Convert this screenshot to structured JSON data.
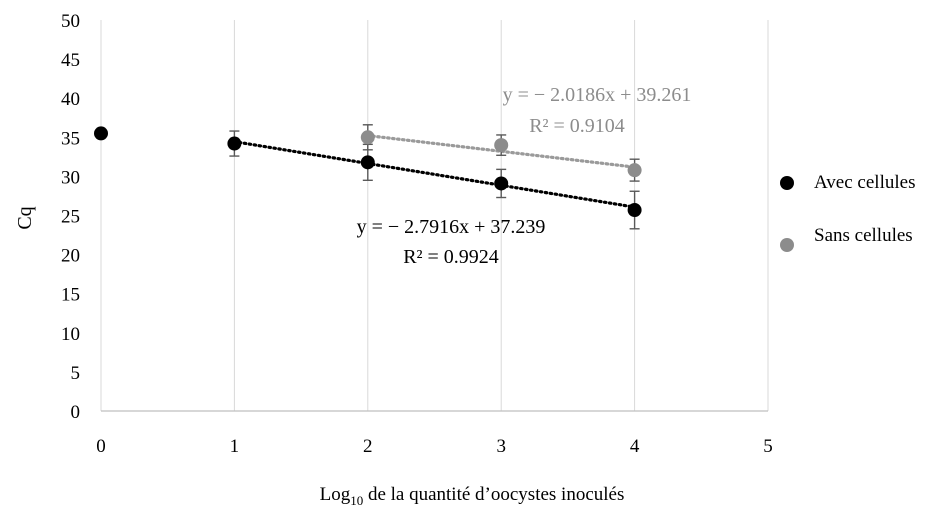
{
  "chart_data": {
    "type": "scatter",
    "title": "",
    "xlabel": {
      "base": "Log",
      "subscript": "10",
      "rest": " de la quantité d’oocystes inoculés"
    },
    "ylabel": "Cq",
    "xlim": [
      0,
      5
    ],
    "ylim": [
      0,
      50
    ],
    "xticks": [
      0,
      1,
      2,
      3,
      4,
      5
    ],
    "yticks": [
      0,
      5,
      10,
      15,
      20,
      25,
      30,
      35,
      40,
      45,
      50
    ],
    "grid": {
      "vertical": true,
      "horizontal": false
    },
    "legend_position": "right",
    "series": [
      {
        "name": "Avec cellules",
        "color": "#000000",
        "points": [
          {
            "x": 0,
            "y": 35.5,
            "err": null
          },
          {
            "x": 1,
            "y": 34.2,
            "err": 1.6
          },
          {
            "x": 2,
            "y": 31.8,
            "err": 2.3
          },
          {
            "x": 3,
            "y": 29.1,
            "err": 1.8
          },
          {
            "x": 4,
            "y": 25.7,
            "err": 2.4
          }
        ],
        "trendline": {
          "x_from": 1,
          "x_to": 4,
          "slope": -2.7916,
          "intercept": 37.239,
          "color": "#000000"
        },
        "equation": "y = − 2.7916x + 37.239",
        "r2": "R² = 0.9924"
      },
      {
        "name": "Sans cellules",
        "color": "#8c8c8c",
        "points": [
          {
            "x": 2,
            "y": 35.0,
            "err": 1.6
          },
          {
            "x": 3,
            "y": 34.0,
            "err": 1.3
          },
          {
            "x": 4,
            "y": 30.8,
            "err": 1.4
          }
        ],
        "trendline": {
          "x_from": 2,
          "x_to": 4,
          "slope": -2.0186,
          "intercept": 39.261,
          "color": "#9a9a9a"
        },
        "equation": "y = − 2.0186x + 39.261",
        "r2": "R² = 0.9104"
      }
    ]
  }
}
